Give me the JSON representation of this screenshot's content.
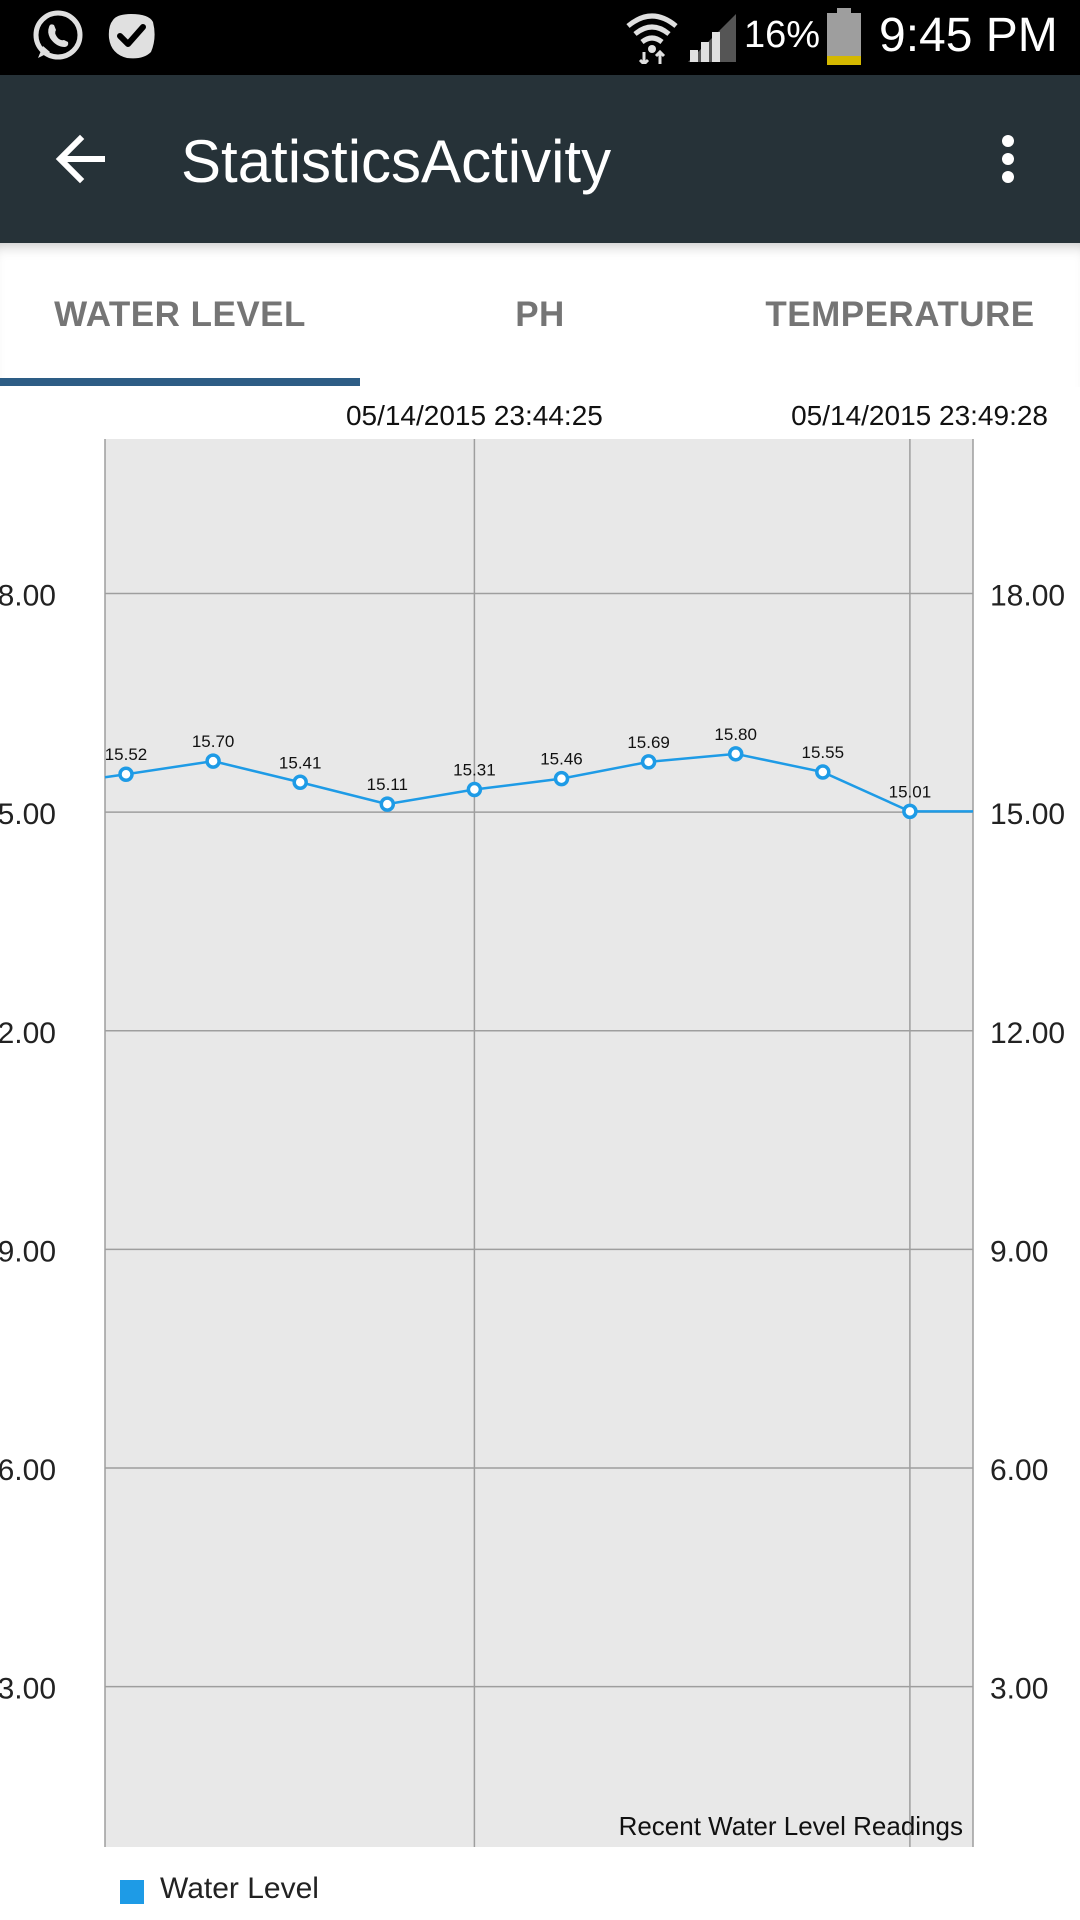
{
  "status_bar": {
    "battery_percent": "16%",
    "time": "9:45 PM",
    "icons": [
      "whatsapp-icon",
      "checkmark-app-icon",
      "wifi-icon",
      "signal-icon",
      "battery-icon"
    ]
  },
  "app_bar": {
    "title": "StatisticsActivity",
    "back_icon": "arrow-left-icon",
    "menu_icon": "more-vert-icon"
  },
  "tabs": [
    {
      "label": "WATER LEVEL",
      "selected": true
    },
    {
      "label": "PH",
      "selected": false
    },
    {
      "label": "TEMPERATURE",
      "selected": false
    }
  ],
  "colors": {
    "status_bar": "#000000",
    "app_bar": "#263238",
    "tab_indicator": "#2d5d85",
    "series": "#1e9be6",
    "plot_background": "#e8e8e8",
    "grid": "#9e9e9e"
  },
  "chart_data": {
    "type": "line",
    "title": "Recent Water Level Readings",
    "series": [
      {
        "name": "Water Level",
        "values": [
          15.52,
          15.7,
          15.41,
          15.11,
          15.31,
          15.46,
          15.69,
          15.8,
          15.55,
          15.01,
          15.01
        ]
      }
    ],
    "point_labels": [
      "15.52",
      "15.70",
      "15.41",
      "15.11",
      "15.31",
      "15.46",
      "15.69",
      "15.80",
      "15.55",
      "15.01"
    ],
    "x_tick_labels": [
      {
        "index": 4,
        "label": "05/14/2015 23:44:25"
      },
      {
        "index": 9,
        "label": "05/14/2015 23:49:28"
      }
    ],
    "y_ticks": [
      "18.00",
      "15.00",
      "12.00",
      "9.00",
      "6.00",
      "3.00"
    ],
    "ylim": [
      0.8,
      20.12
    ],
    "grid": true,
    "legend_position": "bottom-left",
    "axes": "left-and-right"
  }
}
